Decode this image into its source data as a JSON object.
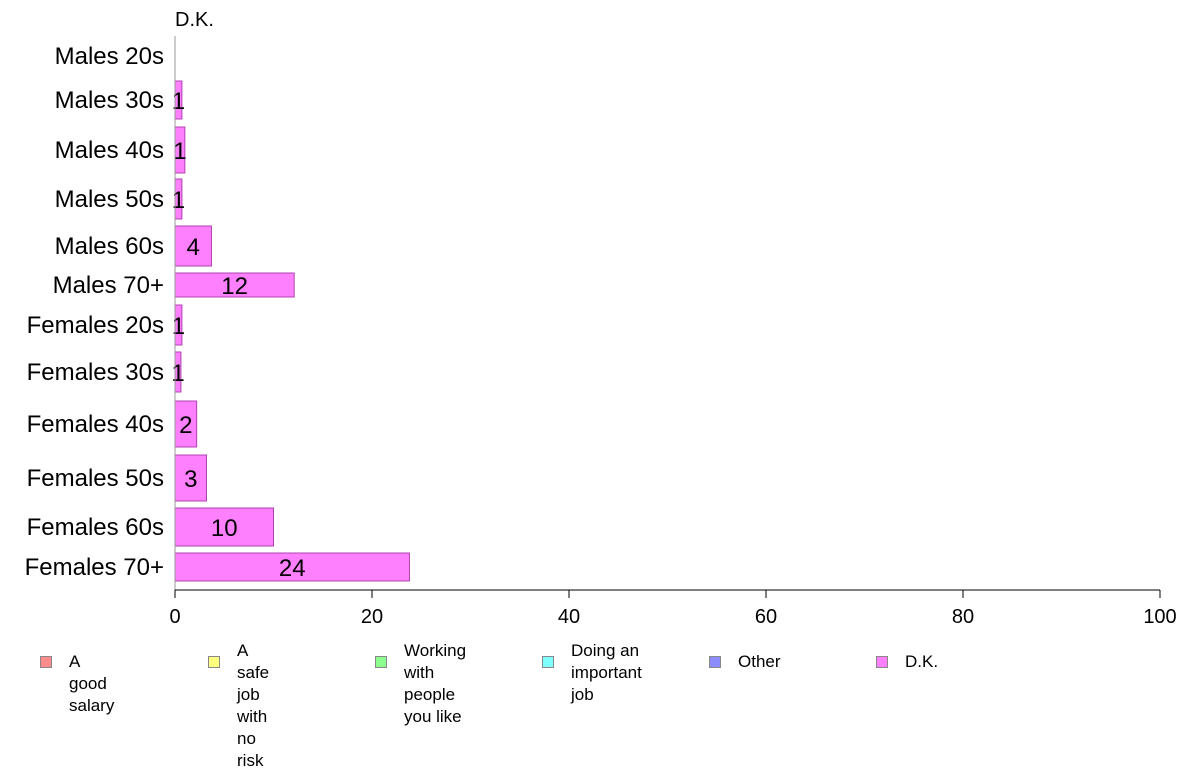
{
  "chart_data": {
    "type": "bar",
    "orientation": "horizontal",
    "stacked": true,
    "title": "D.K.",
    "categories": [
      "Males 20s",
      "Males 30s",
      "Males 40s",
      "Males 50s",
      "Males 60s",
      "Males 70+",
      "Females 20s",
      "Females 30s",
      "Females 40s",
      "Females 50s",
      "Females 60s",
      "Females 70+"
    ],
    "series": [
      {
        "name": "A good salary",
        "color": "#ff8c8c",
        "values": [
          0,
          0,
          0,
          0,
          0,
          0,
          0,
          0,
          0,
          0,
          0,
          0
        ]
      },
      {
        "name": "A safe job\nwith no risk",
        "color": "#ffff80",
        "values": [
          0,
          0,
          0,
          0,
          0,
          0,
          0,
          0,
          0,
          0,
          0,
          0
        ]
      },
      {
        "name": "Working with\npeople you like",
        "color": "#8cff8c",
        "values": [
          0,
          0,
          0,
          0,
          0,
          0,
          0,
          0,
          0,
          0,
          0,
          0
        ]
      },
      {
        "name": "Doing an\nimportant job",
        "color": "#80ffff",
        "values": [
          0,
          0,
          0,
          0,
          0,
          0,
          0,
          0,
          0,
          0,
          0,
          0
        ]
      },
      {
        "name": "Other",
        "color": "#8c8cff",
        "values": [
          0,
          0,
          0,
          0,
          0,
          0,
          0,
          0,
          0,
          0,
          0,
          0
        ]
      },
      {
        "name": "D.K.",
        "color": "#ff80ff",
        "values": [
          0,
          0.7,
          1,
          0.7,
          3.7,
          12.1,
          0.7,
          0.6,
          2.2,
          3.2,
          10,
          23.8
        ]
      }
    ],
    "data_labels": [
      "",
      "1",
      "1",
      "1",
      "4",
      "12",
      "1",
      "1",
      "2",
      "3",
      "10",
      "24"
    ],
    "xlim": [
      0,
      100
    ],
    "xticks": [
      0,
      20,
      40,
      60,
      80,
      100
    ],
    "grid": false,
    "legend_position": "bottom"
  }
}
